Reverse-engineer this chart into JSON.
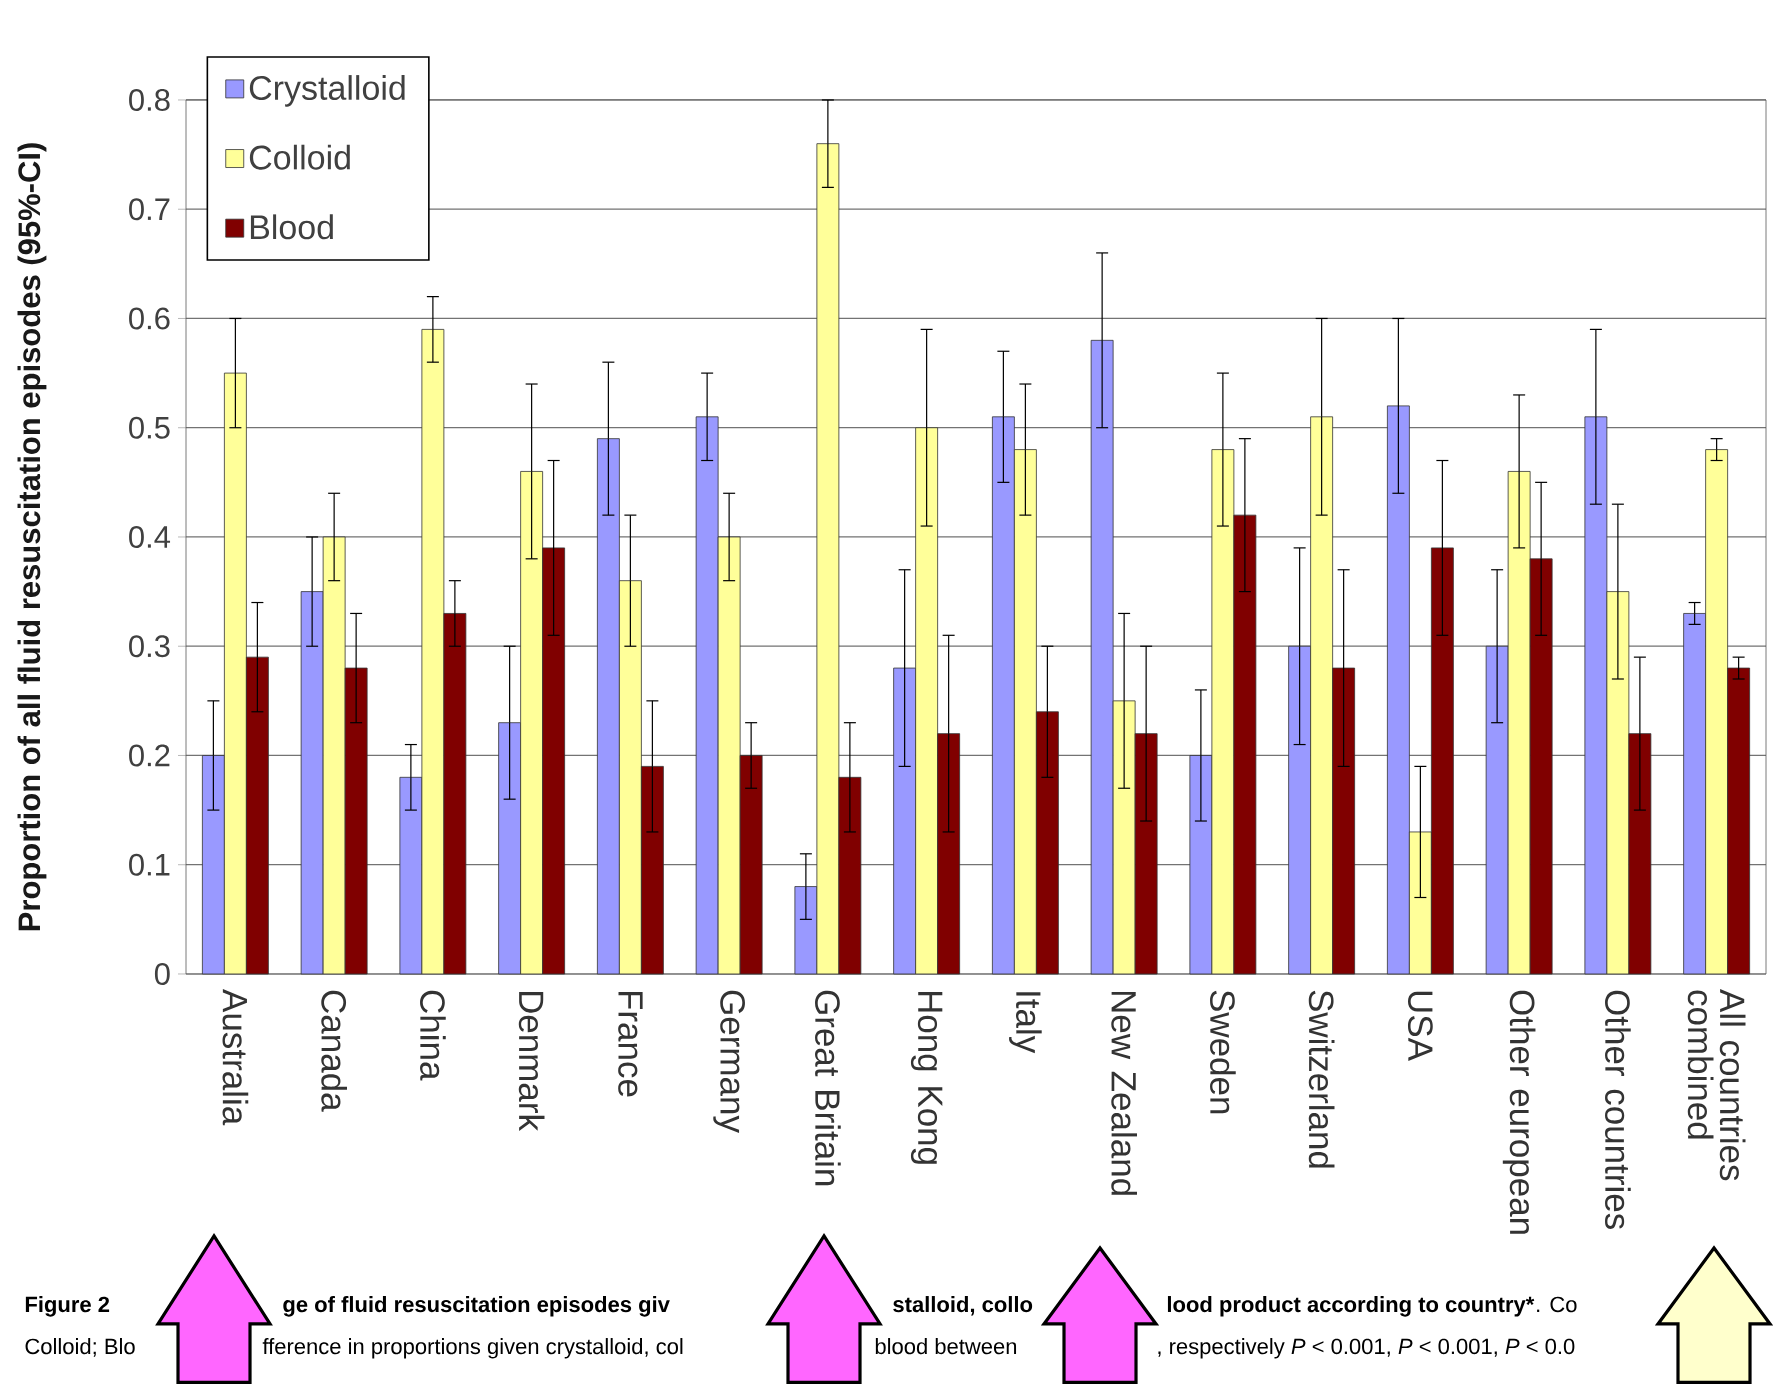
{
  "chart_data": {
    "type": "bar",
    "ylabel": "Proportion of all fluid resuscitation episodes (95%-CI)",
    "categories": [
      "Australia",
      "Canada",
      "China",
      "Denmark",
      "France",
      "Germany",
      "Great Britain",
      "Hong Kong",
      "Italy",
      "New Zealand",
      "Sweden",
      "Switzerland",
      "USA",
      "Other european",
      "Other countries",
      "All countries combined"
    ],
    "series": [
      {
        "name": "Crystalloid",
        "color": "#9999ff",
        "values": [
          0.2,
          0.35,
          0.18,
          0.23,
          0.49,
          0.51,
          0.08,
          0.28,
          0.51,
          0.58,
          0.2,
          0.3,
          0.52,
          0.3,
          0.51,
          0.33
        ],
        "errors": [
          0.05,
          0.05,
          0.03,
          0.07,
          0.07,
          0.04,
          0.03,
          0.09,
          0.06,
          0.08,
          0.06,
          0.09,
          0.08,
          0.07,
          0.08,
          0.01
        ]
      },
      {
        "name": "Colloid",
        "color": "#ffff99",
        "values": [
          0.55,
          0.4,
          0.59,
          0.46,
          0.36,
          0.4,
          0.76,
          0.5,
          0.48,
          0.25,
          0.48,
          0.51,
          0.13,
          0.46,
          0.35,
          0.48
        ],
        "errors": [
          0.05,
          0.04,
          0.03,
          0.08,
          0.06,
          0.04,
          0.04,
          0.09,
          0.06,
          0.08,
          0.07,
          0.09,
          0.06,
          0.07,
          0.08,
          0.01
        ]
      },
      {
        "name": "Blood",
        "color": "#800000",
        "values": [
          0.29,
          0.28,
          0.33,
          0.39,
          0.19,
          0.2,
          0.18,
          0.22,
          0.24,
          0.22,
          0.42,
          0.28,
          0.39,
          0.38,
          0.22,
          0.28
        ],
        "errors": [
          0.05,
          0.05,
          0.03,
          0.08,
          0.06,
          0.03,
          0.05,
          0.09,
          0.06,
          0.08,
          0.07,
          0.09,
          0.08,
          0.07,
          0.07,
          0.01
        ]
      }
    ],
    "ylim": [
      0,
      0.8
    ],
    "yticks": [
      0,
      0.1,
      0.2,
      0.3,
      0.4,
      0.5,
      0.6,
      0.7,
      0.8
    ],
    "grid": "y",
    "legend": "top left",
    "annotations": [
      "Figure 2",
      "ge of fluid resuscitation episodes giv",
      "stalloid, collo",
      "lood product according to country*",
      ". Co",
      "Colloid; Blo",
      "fference in proportions given crystalloid, col",
      "blood between",
      ", respectively *P* < 0.001, *P* < 0.001, *P* < 0.0"
    ]
  }
}
